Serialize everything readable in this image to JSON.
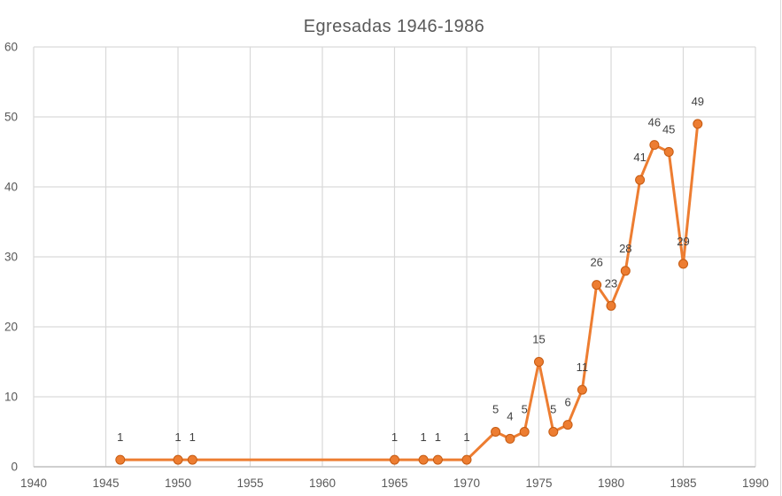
{
  "chart_data": {
    "type": "line",
    "title": "Egresadas 1946-1986",
    "x": [
      1946,
      1950,
      1951,
      1965,
      1967,
      1968,
      1970,
      1972,
      1973,
      1974,
      1975,
      1976,
      1977,
      1978,
      1979,
      1980,
      1981,
      1982,
      1983,
      1984,
      1985,
      1986
    ],
    "values": [
      1,
      1,
      1,
      1,
      1,
      1,
      1,
      5,
      4,
      5,
      15,
      5,
      6,
      11,
      26,
      23,
      28,
      41,
      46,
      45,
      29,
      49
    ],
    "data_labels": [
      "1",
      "1",
      "1",
      "1",
      "1",
      "1",
      "1",
      "5",
      "4",
      "5",
      "15",
      "5",
      "6",
      "11",
      "26",
      "23",
      "28",
      "41",
      "46",
      "45",
      "29",
      "49"
    ],
    "xlabel": "",
    "ylabel": "",
    "xlim": [
      1940,
      1990
    ],
    "ylim": [
      0,
      60
    ],
    "x_ticks": [
      1940,
      1945,
      1950,
      1955,
      1960,
      1965,
      1970,
      1975,
      1980,
      1985,
      1990
    ],
    "y_ticks": [
      0,
      10,
      20,
      30,
      40,
      50,
      60
    ],
    "grid": true,
    "legend": "none",
    "marker": "circle",
    "colors": {
      "series": "#ed7d31",
      "marker_fill": "#ed7d31",
      "marker_border": "#c55a11",
      "gridline": "#d9d9d9",
      "axis": "#bfbfbf",
      "right_border": "#dcdcdc",
      "tick_label": "#595959",
      "data_label": "#404040",
      "title": "#595959",
      "background": "#ffffff"
    }
  }
}
